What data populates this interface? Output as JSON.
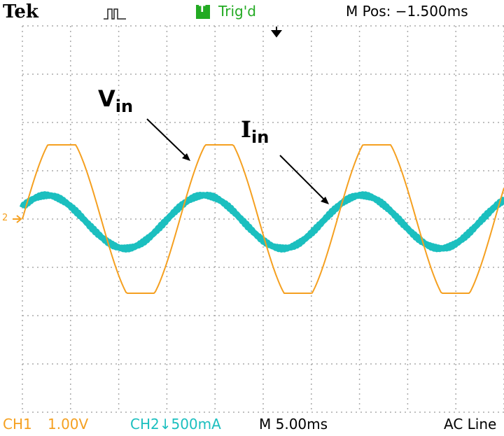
{
  "header": {
    "brand": "Tek",
    "trigger_status": "Trig'd",
    "trigger_icon": "T",
    "position": "M Pos: −1.500ms"
  },
  "annotations": [
    {
      "label": "V",
      "subscript": "in"
    },
    {
      "label": "I",
      "subscript": "in"
    }
  ],
  "channel_marker": "2",
  "footer": {
    "ch1": "CH1",
    "ch1_scale": "1.00V",
    "ch2": "CH2↓500mA",
    "timebase": "M 5.00ms",
    "trigger_source": "AC Line"
  }
}
